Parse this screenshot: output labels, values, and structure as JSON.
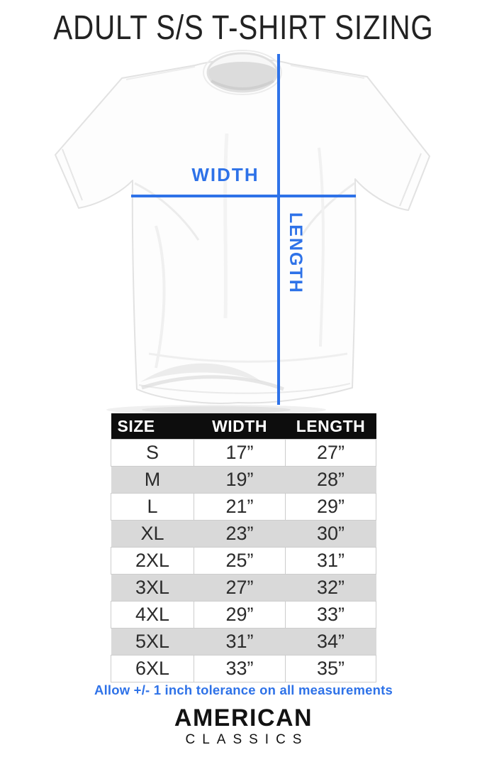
{
  "title": "ADULT S/S T-SHIRT SIZING",
  "diagram": {
    "width_label": "WIDTH",
    "length_label": "LENGTH"
  },
  "size_chart": {
    "columns": [
      "SIZE",
      "WIDTH",
      "LENGTH"
    ],
    "rows": [
      {
        "size": "S",
        "width": "17”",
        "length": "27”"
      },
      {
        "size": "M",
        "width": "19”",
        "length": "28”"
      },
      {
        "size": "L",
        "width": "21”",
        "length": "29”"
      },
      {
        "size": "XL",
        "width": "23”",
        "length": "30”"
      },
      {
        "size": "2XL",
        "width": "25”",
        "length": "31”"
      },
      {
        "size": "3XL",
        "width": "27”",
        "length": "32”"
      },
      {
        "size": "4XL",
        "width": "29”",
        "length": "33”"
      },
      {
        "size": "5XL",
        "width": "31”",
        "length": "34”"
      },
      {
        "size": "6XL",
        "width": "33”",
        "length": "35”"
      }
    ]
  },
  "tolerance_note": "Allow +/- 1 inch tolerance on all measurements",
  "brand": {
    "line1": "AMERICAN",
    "line2": "CLASSICS"
  },
  "colors": {
    "accent_blue": "#2e72e8",
    "row_alt_gray": "#d9d9d9",
    "table_header_black": "#0d0d0d"
  }
}
